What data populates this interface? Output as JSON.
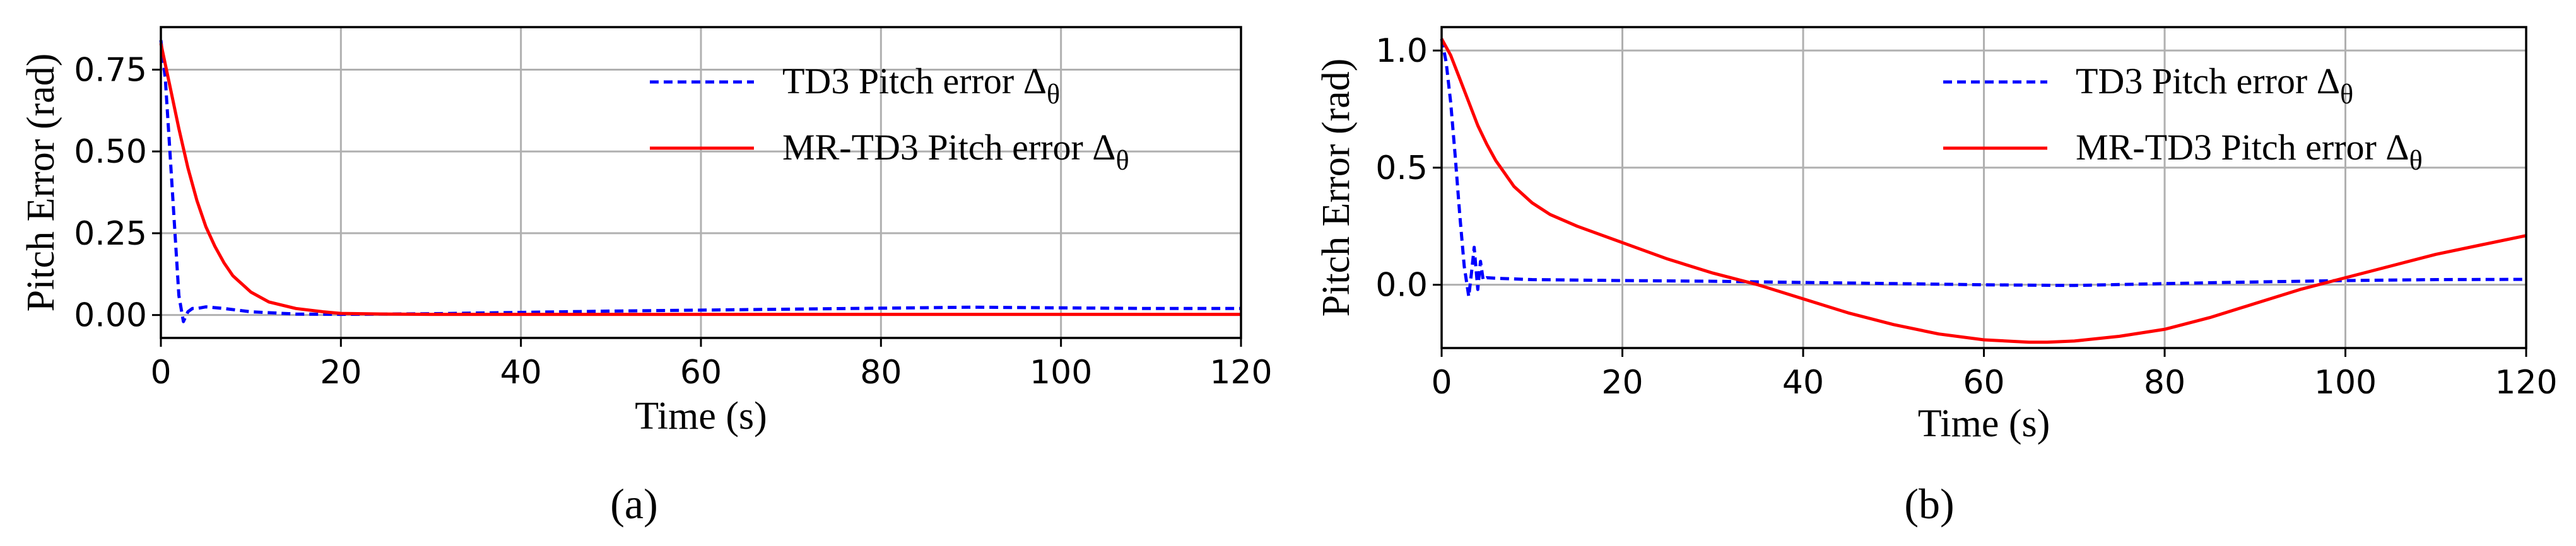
{
  "chart_data": [
    {
      "id": "a",
      "type": "line",
      "caption": "(a)",
      "xlabel": "Time (s)",
      "ylabel": "Pitch Error (rad)",
      "xlim": [
        0,
        120
      ],
      "ylim": [
        -0.07,
        0.88
      ],
      "xticks": [
        0,
        20,
        40,
        60,
        80,
        100,
        120
      ],
      "yticks": [
        0.0,
        0.25,
        0.5,
        0.75
      ],
      "xtick_labels": [
        "0",
        "20",
        "40",
        "60",
        "80",
        "100",
        "120"
      ],
      "ytick_labels": [
        "0.00",
        "0.25",
        "0.50",
        "0.75"
      ],
      "grid": true,
      "legend_position": "top-right",
      "series": [
        {
          "name": "TD3 Pitch error Δθ",
          "label_main": "TD3 Pitch error Δ",
          "label_sub": "θ",
          "color": "#0000ff",
          "style": "dashed",
          "x": [
            0,
            0.5,
            1.0,
            1.5,
            2.0,
            2.5,
            3.0,
            3.5,
            4.0,
            5.0,
            7.0,
            10,
            15,
            20,
            25,
            30,
            40,
            50,
            60,
            70,
            80,
            90,
            100,
            110,
            120
          ],
          "y": [
            0.84,
            0.72,
            0.5,
            0.28,
            0.06,
            -0.02,
            0.01,
            0.02,
            0.02,
            0.025,
            0.02,
            0.01,
            0.003,
            0.002,
            0.003,
            0.004,
            0.008,
            0.012,
            0.015,
            0.018,
            0.021,
            0.024,
            0.022,
            0.02,
            0.02
          ]
        },
        {
          "name": "MR-TD3 Pitch error Δθ",
          "label_main": "MR-TD3 Pitch error Δ",
          "label_sub": "θ",
          "color": "#ff0000",
          "style": "solid",
          "x": [
            0,
            1,
            2,
            3,
            4,
            5,
            6,
            7,
            8,
            10,
            12,
            15,
            18,
            20,
            25,
            30,
            40,
            60,
            80,
            100,
            120
          ],
          "y": [
            0.83,
            0.7,
            0.57,
            0.45,
            0.35,
            0.27,
            0.21,
            0.16,
            0.12,
            0.07,
            0.04,
            0.02,
            0.01,
            0.005,
            0.003,
            0.002,
            0.002,
            0.002,
            0.002,
            0.002,
            0.002
          ]
        }
      ]
    },
    {
      "id": "b",
      "type": "line",
      "caption": "(b)",
      "xlabel": "Time (s)",
      "ylabel": "Pitch Error (rad)",
      "xlim": [
        0,
        120
      ],
      "ylim": [
        -0.27,
        1.1
      ],
      "xticks": [
        0,
        20,
        40,
        60,
        80,
        100,
        120
      ],
      "yticks": [
        0.0,
        0.5,
        1.0
      ],
      "xtick_labels": [
        "0",
        "20",
        "40",
        "60",
        "80",
        "100",
        "120"
      ],
      "ytick_labels": [
        "0.0",
        "0.5",
        "1.0"
      ],
      "grid": true,
      "legend_position": "top-right",
      "series": [
        {
          "name": "TD3 Pitch error Δθ",
          "label_main": "TD3 Pitch error Δ",
          "label_sub": "θ",
          "color": "#0000ff",
          "style": "dashed",
          "x": [
            0,
            0.5,
            1.0,
            1.5,
            2.0,
            2.5,
            3.0,
            3.3,
            3.6,
            4.0,
            4.3,
            4.6,
            5.0,
            6,
            8,
            10,
            20,
            30,
            40,
            50,
            60,
            70,
            80,
            90,
            100,
            110,
            120
          ],
          "y": [
            1.05,
            0.95,
            0.78,
            0.55,
            0.3,
            0.08,
            -0.05,
            0.05,
            0.16,
            -0.02,
            0.1,
            0.02,
            0.03,
            0.028,
            0.025,
            0.022,
            0.018,
            0.015,
            0.01,
            0.005,
            0.0,
            -0.003,
            0.005,
            0.012,
            0.018,
            0.022,
            0.023
          ]
        },
        {
          "name": "MR-TD3 Pitch error Δθ",
          "label_main": "MR-TD3 Pitch error Δ",
          "label_sub": "θ",
          "color": "#ff0000",
          "style": "solid",
          "x": [
            0,
            1,
            2,
            3,
            4,
            5,
            6,
            8,
            10,
            12,
            15,
            20,
            25,
            30,
            35,
            40,
            45,
            50,
            55,
            60,
            65,
            67,
            70,
            75,
            80,
            85,
            90,
            95,
            100,
            105,
            110,
            115,
            120
          ],
          "y": [
            1.05,
            0.98,
            0.88,
            0.78,
            0.68,
            0.6,
            0.53,
            0.42,
            0.35,
            0.3,
            0.25,
            0.18,
            0.11,
            0.05,
            0.0,
            -0.06,
            -0.12,
            -0.17,
            -0.21,
            -0.235,
            -0.245,
            -0.245,
            -0.24,
            -0.22,
            -0.19,
            -0.14,
            -0.08,
            -0.02,
            0.03,
            0.08,
            0.13,
            0.17,
            0.21
          ]
        }
      ]
    }
  ]
}
